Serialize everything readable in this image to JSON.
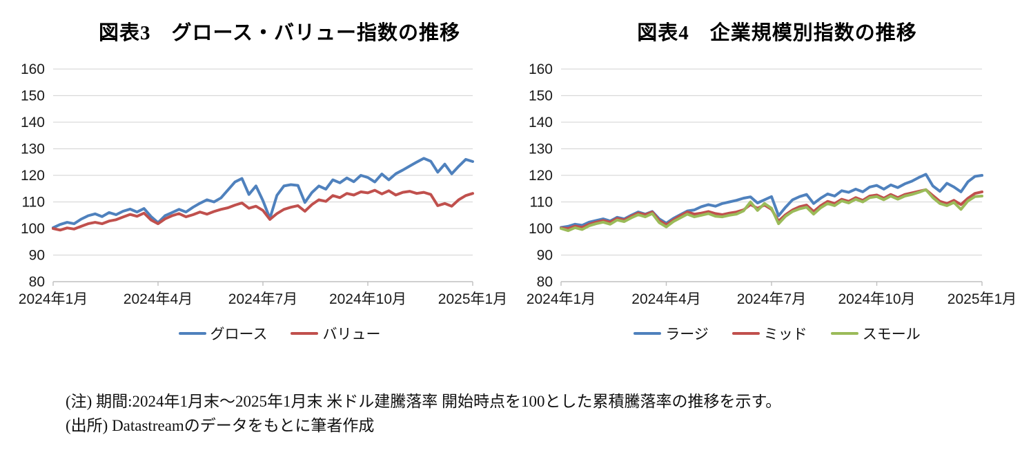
{
  "colors": {
    "grid": "#d9d9d9",
    "axis": "#bfbfbf",
    "tick_text": "#1a1a1a"
  },
  "chart_data": [
    {
      "type": "line",
      "title": "図表3　グロース・バリュー指数の推移",
      "ylim": [
        80,
        160
      ],
      "yticks": [
        160,
        150,
        140,
        130,
        120,
        110,
        100,
        90,
        80
      ],
      "xticklabels": [
        "2024年1月",
        "2024年4月",
        "2024年7月",
        "2024年10月",
        "2025年1月"
      ],
      "grid": true,
      "legend_position": "bottom",
      "x_range_note": "index, end of Jan 2024 = 100, through end of Jan 2025",
      "series": [
        {
          "name": "グロース",
          "color": "#4f81bd",
          "values": [
            100.3,
            101.5,
            102.3,
            101.8,
            103.5,
            104.8,
            105.5,
            104.5,
            106.0,
            105.2,
            106.5,
            107.3,
            106.2,
            107.5,
            104.5,
            102.2,
            104.8,
            106.0,
            107.2,
            106.2,
            108.0,
            109.5,
            110.8,
            110.0,
            111.5,
            114.5,
            117.5,
            118.8,
            112.8,
            116.0,
            110.5,
            103.8,
            112.5,
            116.0,
            116.5,
            116.2,
            109.8,
            113.5,
            116.0,
            114.8,
            118.3,
            117.2,
            119.0,
            117.6,
            120.0,
            119.2,
            117.5,
            120.5,
            118.3,
            120.6,
            122.0,
            123.5,
            125.0,
            126.4,
            125.3,
            121.2,
            124.2,
            120.6,
            123.4,
            126.0,
            125.2
          ]
        },
        {
          "name": "バリュー",
          "color": "#c0504d",
          "values": [
            100.0,
            99.4,
            100.2,
            99.8,
            100.8,
            101.8,
            102.3,
            101.8,
            102.8,
            103.3,
            104.3,
            105.3,
            104.6,
            105.8,
            103.2,
            101.8,
            103.6,
            104.8,
            105.6,
            104.4,
            105.2,
            106.2,
            105.4,
            106.4,
            107.2,
            107.8,
            108.8,
            109.6,
            107.6,
            108.4,
            106.8,
            103.4,
            105.6,
            107.2,
            108.0,
            108.6,
            106.5,
            109.0,
            110.8,
            110.2,
            112.4,
            111.6,
            113.2,
            112.6,
            113.8,
            113.4,
            114.4,
            113.0,
            114.2,
            112.6,
            113.6,
            114.0,
            113.2,
            113.6,
            112.8,
            108.6,
            109.4,
            108.4,
            110.8,
            112.4,
            113.2
          ]
        }
      ]
    },
    {
      "type": "line",
      "title": "図表4　企業規模別指数の推移",
      "ylim": [
        80,
        160
      ],
      "yticks": [
        160,
        150,
        140,
        130,
        120,
        110,
        100,
        90,
        80
      ],
      "xticklabels": [
        "2024年1月",
        "2024年4月",
        "2024年7月",
        "2024年10月",
        "2025年1月"
      ],
      "grid": true,
      "legend_position": "bottom",
      "x_range_note": "index, end of Jan 2024 = 100, through end of Jan 2025",
      "series": [
        {
          "name": "ラージ",
          "color": "#4f81bd",
          "values": [
            100.4,
            100.8,
            101.6,
            101.2,
            102.4,
            103.0,
            103.6,
            102.8,
            104.2,
            103.6,
            105.0,
            106.2,
            105.4,
            106.4,
            103.6,
            102.0,
            103.8,
            105.2,
            106.6,
            107.0,
            108.2,
            109.0,
            108.4,
            109.4,
            110.0,
            110.6,
            111.4,
            111.9,
            109.6,
            110.8,
            112.0,
            104.8,
            108.0,
            110.8,
            112.0,
            112.8,
            109.4,
            111.4,
            113.0,
            112.2,
            114.2,
            113.6,
            114.8,
            113.8,
            115.6,
            116.2,
            114.8,
            116.4,
            115.4,
            116.8,
            117.8,
            119.2,
            120.4,
            116.0,
            114.0,
            117.0,
            115.6,
            113.8,
            117.6,
            119.6,
            120.0
          ]
        },
        {
          "name": "ミッド",
          "color": "#c0504d",
          "values": [
            100.2,
            100.0,
            100.9,
            100.4,
            101.6,
            102.4,
            103.0,
            102.4,
            103.8,
            103.2,
            104.6,
            105.8,
            105.2,
            106.2,
            103.0,
            101.4,
            103.2,
            104.8,
            106.2,
            105.4,
            105.8,
            106.4,
            105.6,
            105.2,
            105.8,
            106.2,
            107.0,
            109.0,
            107.6,
            108.8,
            107.2,
            102.8,
            105.2,
            107.0,
            108.2,
            108.8,
            106.4,
            108.6,
            110.2,
            109.4,
            111.0,
            110.2,
            111.6,
            110.6,
            112.2,
            112.6,
            111.4,
            112.8,
            111.6,
            112.8,
            113.4,
            114.0,
            114.6,
            112.4,
            110.2,
            109.4,
            110.6,
            109.0,
            111.4,
            113.2,
            113.8
          ]
        },
        {
          "name": "スモール",
          "color": "#9bbb59",
          "values": [
            100.0,
            99.2,
            100.3,
            99.6,
            101.0,
            101.8,
            102.4,
            101.6,
            103.2,
            102.6,
            104.0,
            105.2,
            104.4,
            105.6,
            102.2,
            100.6,
            102.6,
            104.0,
            105.4,
            104.4,
            105.0,
            105.6,
            104.6,
            104.4,
            105.0,
            105.4,
            106.6,
            110.0,
            106.8,
            109.4,
            107.6,
            101.8,
            104.6,
            106.4,
            107.4,
            108.0,
            105.4,
            107.8,
            109.4,
            108.6,
            110.4,
            109.6,
            111.0,
            110.0,
            111.6,
            112.0,
            110.8,
            112.2,
            111.0,
            112.2,
            112.8,
            113.6,
            114.6,
            111.6,
            109.4,
            108.6,
            109.8,
            107.2,
            110.4,
            112.0,
            112.2
          ]
        }
      ]
    }
  ],
  "notes": {
    "line1": "(注) 期間:2024年1月末～2025年1月末 米ドル建騰落率 開始時点を100とした累積騰落率の推移を示す。",
    "line2": "(出所) Datastreamのデータをもとに筆者作成"
  }
}
